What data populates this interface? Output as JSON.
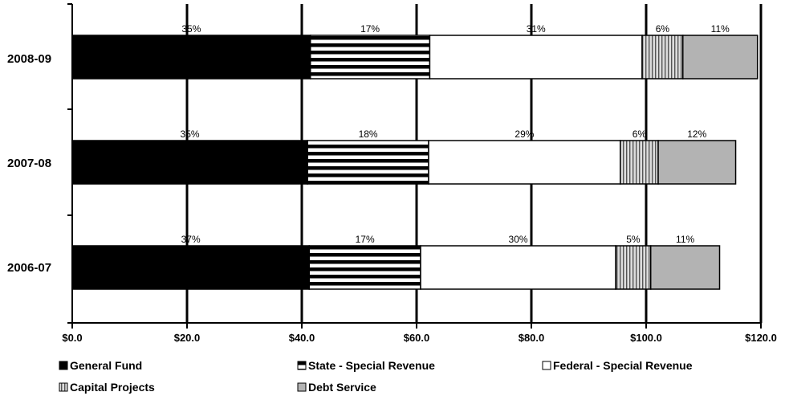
{
  "chart_data": {
    "type": "bar",
    "orientation": "horizontal",
    "stacked": true,
    "categories": [
      "2008-09",
      "2007-08",
      "2006-07"
    ],
    "series": [
      {
        "name": "General Fund",
        "values": [
          41.5,
          41.0,
          41.3
        ],
        "labels": [
          "35%",
          "35%",
          "37%"
        ],
        "pattern": "solid-black"
      },
      {
        "name": "State - Special Revenue",
        "values": [
          20.8,
          21.1,
          19.4
        ],
        "labels": [
          "17%",
          "18%",
          "17%"
        ],
        "pattern": "horizontal-stripes"
      },
      {
        "name": "Federal - Special Revenue",
        "values": [
          37.0,
          33.4,
          34.0
        ],
        "labels": [
          "31%",
          "29%",
          "30%"
        ],
        "pattern": "white"
      },
      {
        "name": "Capital Projects",
        "values": [
          7.1,
          6.6,
          6.1
        ],
        "labels": [
          "6%",
          "6%",
          "5%"
        ],
        "pattern": "vertical-stripes"
      },
      {
        "name": "Debt Service",
        "values": [
          13.0,
          13.5,
          12.0
        ],
        "labels": [
          "11%",
          "12%",
          "11%"
        ],
        "pattern": "gray"
      }
    ],
    "xaxis": {
      "ticks": [
        0,
        20,
        40,
        60,
        80,
        100,
        120
      ],
      "tick_labels": [
        "$0.0",
        "$20.0",
        "$40.0",
        "$60.0",
        "$80.0",
        "$100.0",
        "$120.0"
      ],
      "xlim": [
        0,
        120
      ]
    },
    "title": "",
    "xlabel": "",
    "ylabel": "",
    "grid": "vertical",
    "legend_position": "bottom"
  },
  "colors": {
    "black": "#000000",
    "gray": "#b3b3b3",
    "white": "#ffffff"
  }
}
